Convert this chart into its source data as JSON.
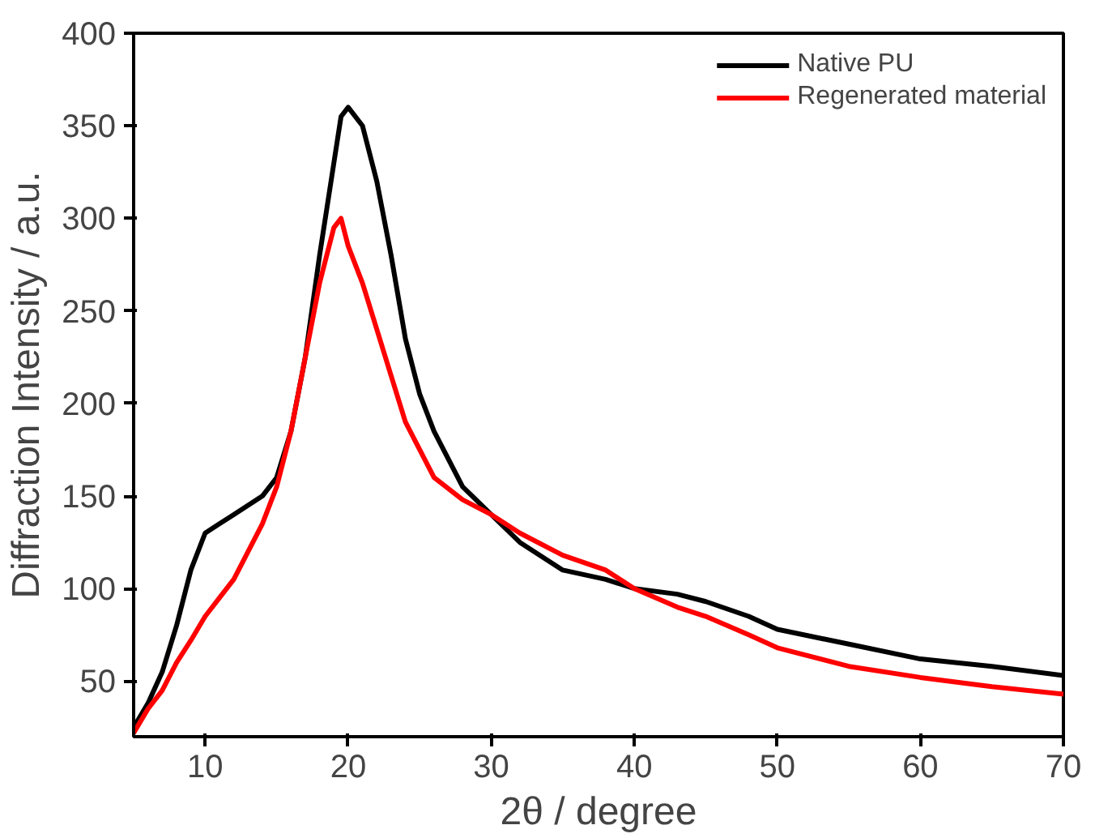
{
  "chart_data": {
    "type": "line",
    "xlabel": "2θ / degree",
    "ylabel": "Diffraction Intensity / a.u.",
    "xlim": [
      5,
      70
    ],
    "xticks": [
      10,
      20,
      30,
      40,
      50,
      60,
      70
    ],
    "ylim": [
      20,
      400
    ],
    "yticks": [
      50,
      100,
      150,
      200,
      250,
      300,
      350,
      400
    ],
    "grid": false,
    "legend": "top right",
    "line_style": "solid",
    "marker": "none",
    "series": [
      {
        "name": "Native PU",
        "color": "#000000",
        "x": [
          5,
          6,
          7,
          8,
          9,
          10,
          11,
          12,
          13,
          14,
          15,
          16,
          17,
          18,
          19,
          19.5,
          20,
          21,
          22,
          23,
          24,
          25,
          26,
          27,
          28,
          30,
          32,
          35,
          38,
          40,
          43,
          45,
          48,
          50,
          55,
          60,
          65,
          70
        ],
        "values": [
          25,
          38,
          55,
          80,
          110,
          130,
          135,
          140,
          145,
          150,
          160,
          185,
          225,
          280,
          330,
          355,
          360,
          350,
          320,
          280,
          235,
          205,
          185,
          170,
          155,
          140,
          125,
          110,
          105,
          100,
          97,
          93,
          85,
          78,
          70,
          62,
          58,
          53
        ]
      },
      {
        "name": "Regenerated material",
        "color": "#ff0000",
        "x": [
          5,
          6,
          7,
          8,
          9,
          10,
          11,
          12,
          13,
          14,
          15,
          16,
          17,
          18,
          19,
          19.5,
          20,
          21,
          22,
          23,
          24,
          25,
          26,
          28,
          30,
          32,
          35,
          38,
          40,
          43,
          45,
          48,
          50,
          55,
          60,
          65,
          70
        ],
        "values": [
          22,
          35,
          45,
          60,
          72,
          85,
          95,
          105,
          120,
          135,
          155,
          185,
          225,
          265,
          295,
          300,
          285,
          265,
          240,
          215,
          190,
          175,
          160,
          148,
          140,
          130,
          118,
          110,
          100,
          90,
          85,
          75,
          68,
          58,
          52,
          47,
          43
        ]
      }
    ]
  }
}
